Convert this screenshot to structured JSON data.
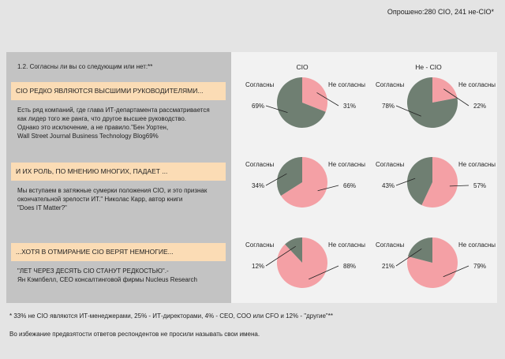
{
  "header": {
    "survey": "Опрошено:280 CIO, 241 не-CIO*"
  },
  "question": "1.2. Согласны ли вы со следующим или нет:**",
  "blocks": [
    {
      "title": "CIO РЕДКО ЯВЛЯЮТСЯ ВЫСШИМИ РУКОВОДИТЕЛЯМИ...",
      "text": "Есть ряд компаний, где глава ИТ-департамента рассматривается\nкак лидер того же ранга, что другое высшее руководство.\nОднако это исключение, а не правило.\"Бен Уортен,\n Wall Street Journal Business Technology Blog69%"
    },
    {
      "title": "И ИХ РОЛЬ, ПО МНЕНИЮ МНОГИХ, ПАДАЕТ ...",
      "text": "Мы вступаем в затяжные сумерки положения CIO, и это признак\nокончательной зрелости ИТ.\" Николас Карр, автор книги\n \"Does IT Matter?\""
    },
    {
      "title": "...ХОТЯ В ОТМИРАНИЕ CIO ВЕРЯТ НЕМНОГИЕ...",
      "text": " \"ЛЕТ ЧЕРЕЗ ДЕСЯТЬ CIO СТАНУТ РЕДКОСТЬЮ\".-\nЯн Кэмпбелл, CEO консалтинговой фирмы Nucleus Research"
    }
  ],
  "columns": [
    "CIO",
    "Не - CIO"
  ],
  "footnotes": [
    "* 33% не CIO являются ИТ-менеджерами, 25% - ИТ-директорами, 4% - CEO, COO или CFO и 12% - \"другие\"**",
    "Во избежание предвзятости ответов респондентов не просили называть свои имена."
  ],
  "colors": {
    "agree": "#6f7f72",
    "disagree": "#f4a0a5",
    "box": "#fbdcb5"
  },
  "chart_data": {
    "type": "pie",
    "legend_labels": {
      "agree": "Согласны",
      "disagree": "Не согласны"
    },
    "pies": [
      {
        "row": 0,
        "col": 0,
        "agree": 69,
        "disagree": 31,
        "agree_label": "69%",
        "disagree_label": "31%"
      },
      {
        "row": 0,
        "col": 1,
        "agree": 78,
        "disagree": 22,
        "agree_label": "78%",
        "disagree_label": "22%"
      },
      {
        "row": 1,
        "col": 0,
        "agree": 34,
        "disagree": 66,
        "agree_label": "34%",
        "disagree_label": "66%"
      },
      {
        "row": 1,
        "col": 1,
        "agree": 43,
        "disagree": 57,
        "agree_label": "43%",
        "disagree_label": "57%"
      },
      {
        "row": 2,
        "col": 0,
        "agree": 12,
        "disagree": 88,
        "agree_label": "12%",
        "disagree_label": "88%"
      },
      {
        "row": 2,
        "col": 1,
        "agree": 21,
        "disagree": 79,
        "agree_label": "21%",
        "disagree_label": "79%"
      }
    ]
  }
}
